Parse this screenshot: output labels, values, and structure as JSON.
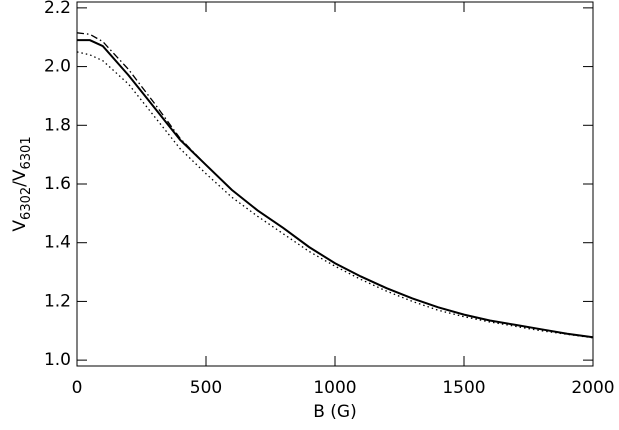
{
  "chart_data": {
    "type": "line",
    "xlabel": "B (G)",
    "ylabel": [
      "V",
      "6302",
      "/V",
      "6301"
    ],
    "x": [
      0,
      50,
      100,
      200,
      300,
      400,
      500,
      600,
      700,
      800,
      900,
      1000,
      1100,
      1200,
      1300,
      1400,
      1500,
      1600,
      1700,
      1800,
      1900,
      2000
    ],
    "series": [
      {
        "color": "#000000",
        "style": "solid",
        "values": [
          2.09,
          2.09,
          2.07,
          1.97,
          1.86,
          1.75,
          1.665,
          1.58,
          1.51,
          1.45,
          1.385,
          1.33,
          1.285,
          1.245,
          1.21,
          1.18,
          1.155,
          1.135,
          1.12,
          1.105,
          1.09,
          1.078
        ]
      },
      {
        "color": "#000000",
        "style": "dashdot",
        "values": [
          2.115,
          2.11,
          2.085,
          1.99,
          1.875,
          1.755,
          1.665,
          1.58,
          1.51,
          1.45,
          1.385,
          1.33,
          1.285,
          1.245,
          1.21,
          1.18,
          1.155,
          1.135,
          1.12,
          1.105,
          1.09,
          1.078
        ]
      },
      {
        "color": "#000000",
        "style": "dotted",
        "values": [
          2.05,
          2.04,
          2.02,
          1.94,
          1.83,
          1.72,
          1.635,
          1.555,
          1.49,
          1.43,
          1.37,
          1.32,
          1.275,
          1.235,
          1.2,
          1.17,
          1.148,
          1.13,
          1.115,
          1.1,
          1.088,
          1.076
        ]
      }
    ],
    "xlim": [
      0,
      2000
    ],
    "xticks": [
      0,
      500,
      1000,
      1500,
      2000
    ],
    "ylim": [
      0.98,
      2.22
    ],
    "yticks": [
      {
        "value": 1.0,
        "label": "1.0"
      },
      1.2,
      1.4,
      1.6,
      1.8,
      {
        "value": 2.0,
        "label": "2.0"
      },
      2.2
    ]
  }
}
